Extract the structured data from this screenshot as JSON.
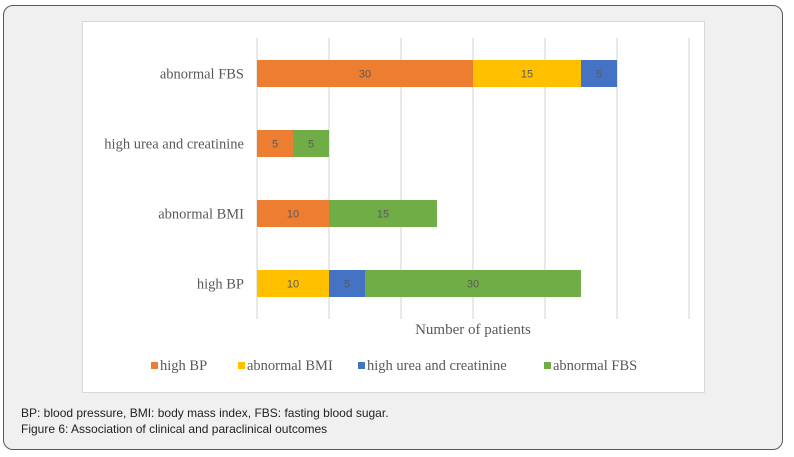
{
  "chart_data": {
    "type": "bar",
    "orientation": "horizontal",
    "stacked": true,
    "title": "",
    "categories": [
      "high BP",
      "abnormal BMI",
      "high urea and creatinine",
      "abnormal FBS"
    ],
    "series": [
      {
        "name": "high BP",
        "color": "#ED7D31",
        "values": [
          0,
          10,
          5,
          30
        ]
      },
      {
        "name": "abnormal BMI",
        "color": "#FFC000",
        "values": [
          10,
          0,
          0,
          15
        ]
      },
      {
        "name": "high urea and creatinine",
        "color": "#4472C4",
        "values": [
          5,
          0,
          0,
          5
        ]
      },
      {
        "name": "abnormal FBS",
        "color": "#70AD47",
        "values": [
          30,
          15,
          5,
          0
        ]
      }
    ],
    "xlabel": "Number of patients",
    "ylabel": "",
    "xlim": [
      0,
      60
    ],
    "x_gridlines": [
      0,
      10,
      20,
      30,
      40,
      50,
      60
    ],
    "grid": true,
    "x_tick_labels_shown": false,
    "data_labels": true,
    "legend_position": "bottom"
  },
  "caption": {
    "line1": "BP: blood pressure, BMI: body mass index, FBS: fasting blood sugar.",
    "line2": "Figure 6: Association of clinical and paraclinical outcomes"
  }
}
